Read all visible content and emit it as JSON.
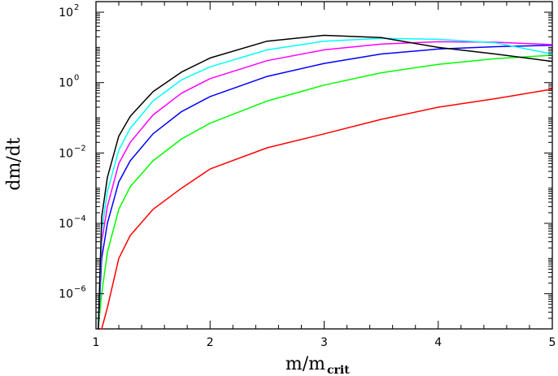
{
  "chart_data": {
    "type": "line",
    "title": "",
    "xlabel": "m/m",
    "xlabel_sub": "crit",
    "ylabel": "dm/dt",
    "xlim": [
      1,
      5
    ],
    "ylim": [
      1e-07,
      200
    ],
    "yscale": "log",
    "grid": false,
    "x_ticks": [
      {
        "value": 1,
        "label": "1"
      },
      {
        "value": 2,
        "label": "2"
      },
      {
        "value": 3,
        "label": "3"
      },
      {
        "value": 4,
        "label": "4"
      },
      {
        "value": 5,
        "label": "5"
      }
    ],
    "y_ticks": [
      {
        "value": 1e-06,
        "base": "10",
        "exp": "−6"
      },
      {
        "value": 0.0001,
        "base": "10",
        "exp": "−4"
      },
      {
        "value": 0.01,
        "base": "10",
        "exp": "−2"
      },
      {
        "value": 1,
        "base": "10",
        "exp": "0"
      },
      {
        "value": 100,
        "base": "10",
        "exp": "2"
      }
    ],
    "x": [
      1.02,
      1.05,
      1.1,
      1.2,
      1.3,
      1.5,
      1.75,
      2.0,
      2.5,
      3.0,
      3.5,
      4.0,
      4.5,
      5.0
    ],
    "series": [
      {
        "color": "#ff0000",
        "values": [
          1e-07,
          1e-07,
          4e-07,
          1e-05,
          4.5e-05,
          0.00025,
          0.001,
          0.0035,
          0.014,
          0.035,
          0.09,
          0.2,
          0.35,
          0.65
        ]
      },
      {
        "color": "#00ff00",
        "values": [
          1e-07,
          1e-06,
          1.5e-05,
          0.00025,
          0.0011,
          0.006,
          0.025,
          0.07,
          0.3,
          0.85,
          1.9,
          3.3,
          4.8,
          6.0
        ]
      },
      {
        "color": "#0000ff",
        "values": [
          1e-07,
          1e-05,
          0.0001,
          0.0015,
          0.006,
          0.035,
          0.15,
          0.4,
          1.5,
          3.5,
          6.5,
          9.0,
          10.5,
          11.5
        ]
      },
      {
        "color": "#ff00ff",
        "values": [
          1e-07,
          3e-05,
          0.0003,
          0.005,
          0.02,
          0.12,
          0.5,
          1.3,
          4.2,
          8.5,
          12.5,
          14.5,
          14.0,
          12.0
        ]
      },
      {
        "color": "#00ffff",
        "values": [
          1e-07,
          6e-05,
          0.0008,
          0.012,
          0.05,
          0.3,
          1.2,
          2.8,
          8.5,
          15.0,
          18.0,
          17.0,
          13.5,
          6.5
        ]
      },
      {
        "color": "#000000",
        "values": [
          1e-07,
          0.00015,
          0.002,
          0.03,
          0.11,
          0.55,
          2.0,
          5.0,
          15.0,
          22.0,
          19.0,
          10.0,
          6.5,
          4.0
        ]
      }
    ]
  }
}
